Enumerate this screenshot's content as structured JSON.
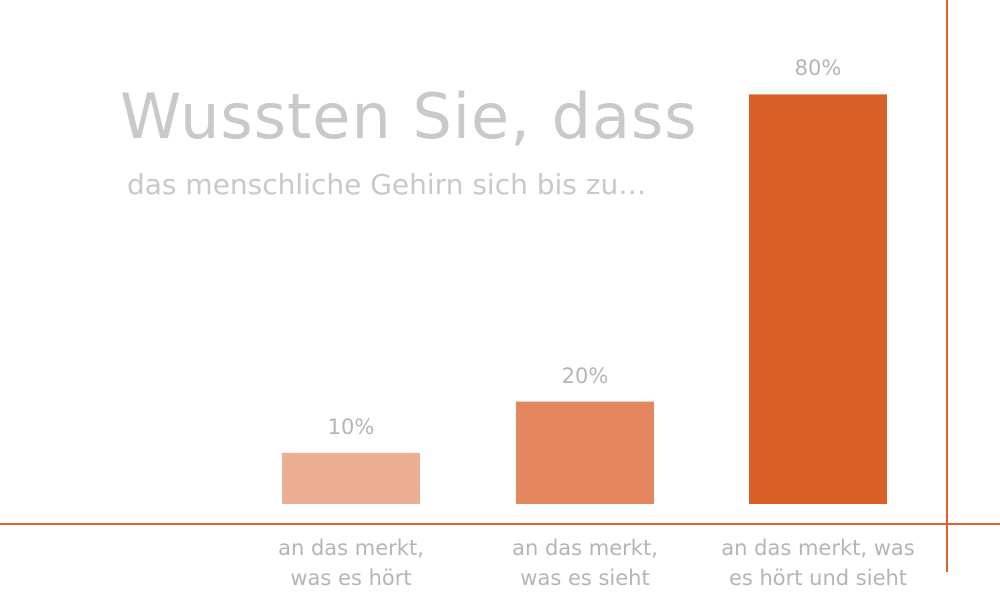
{
  "title": "Wussten Sie, dass",
  "subtitle": "das menschliche Gehirn sich bis zu…",
  "colors": {
    "axis": "#e06030",
    "text": "#b5b5b5",
    "bars": [
      "#ecaf94",
      "#e3865e",
      "#d85f25"
    ]
  },
  "chart_data": {
    "type": "bar",
    "categories": [
      [
        "an das merkt,",
        "was es hört"
      ],
      [
        "an das merkt,",
        "was es sieht"
      ],
      [
        "an das merkt, was",
        "es hört und sieht"
      ]
    ],
    "values": [
      10,
      20,
      80
    ],
    "value_labels": [
      "10%",
      "20%",
      "80%"
    ],
    "ylim": [
      0,
      100
    ],
    "grid": false,
    "legend": "none"
  }
}
